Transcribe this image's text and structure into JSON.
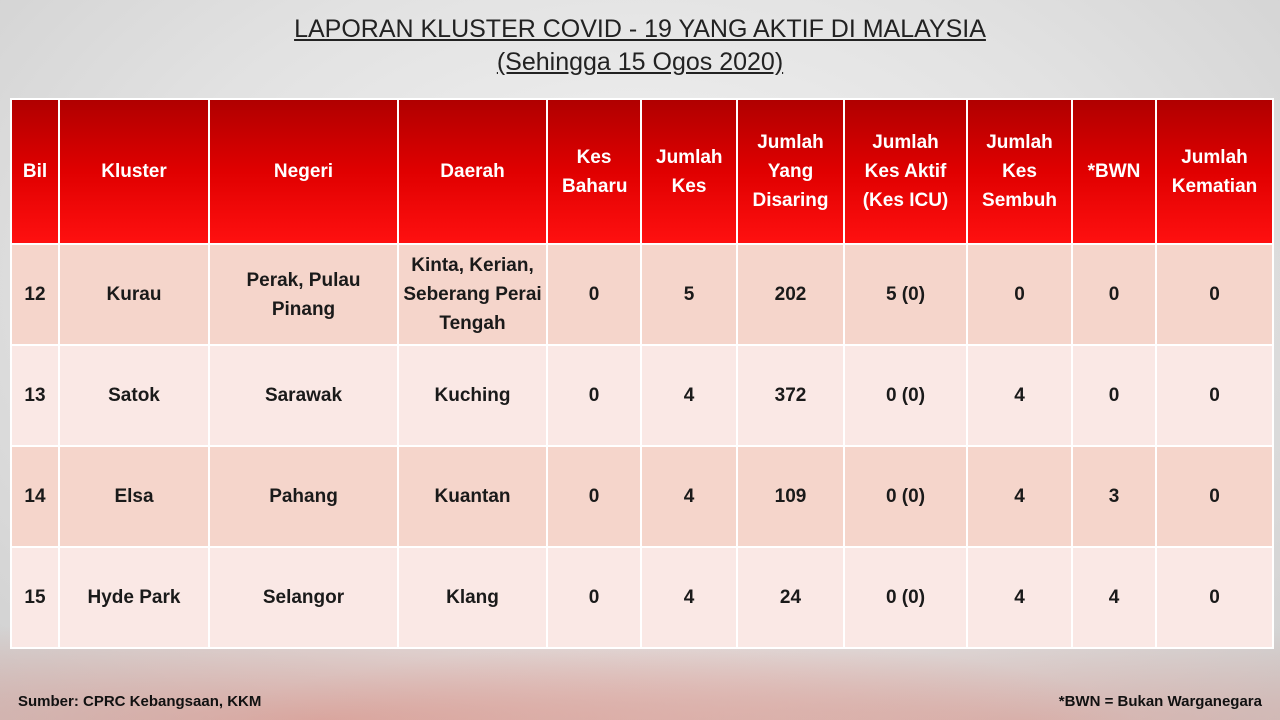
{
  "title": "LAPORAN KLUSTER COVID - 19 YANG AKTIF DI MALAYSIA",
  "subtitle": "(Sehingga 15 Ogos 2020)",
  "headers": [
    "Bil",
    "Kluster",
    "Negeri",
    "Daerah",
    "Kes Baharu",
    "Jumlah Kes",
    "Jumlah Yang Disaring",
    "Jumlah Kes Aktif (Kes ICU)",
    "Jumlah Kes Sembuh",
    "*BWN",
    "Jumlah Kematian"
  ],
  "rows": [
    [
      "12",
      "Kurau",
      "Perak, Pulau Pinang",
      "Kinta, Kerian, Seberang Perai Tengah",
      "0",
      "5",
      "202",
      "5 (0)",
      "0",
      "0",
      "0"
    ],
    [
      "13",
      "Satok",
      "Sarawak",
      "Kuching",
      "0",
      "4",
      "372",
      "0 (0)",
      "4",
      "0",
      "0"
    ],
    [
      "14",
      "Elsa",
      "Pahang",
      "Kuantan",
      "0",
      "4",
      "109",
      "0 (0)",
      "4",
      "3",
      "0"
    ],
    [
      "15",
      "Hyde Park",
      "Selangor",
      "Klang",
      "0",
      "4",
      "24",
      "0 (0)",
      "4",
      "4",
      "0"
    ]
  ],
  "source": "Sumber: CPRC Kebangsaan, KKM",
  "note": "*BWN = Bukan Warganegara",
  "colors": {
    "header": "#e00000",
    "row_odd": "#f5d5cb",
    "row_even": "#fae8e5"
  }
}
